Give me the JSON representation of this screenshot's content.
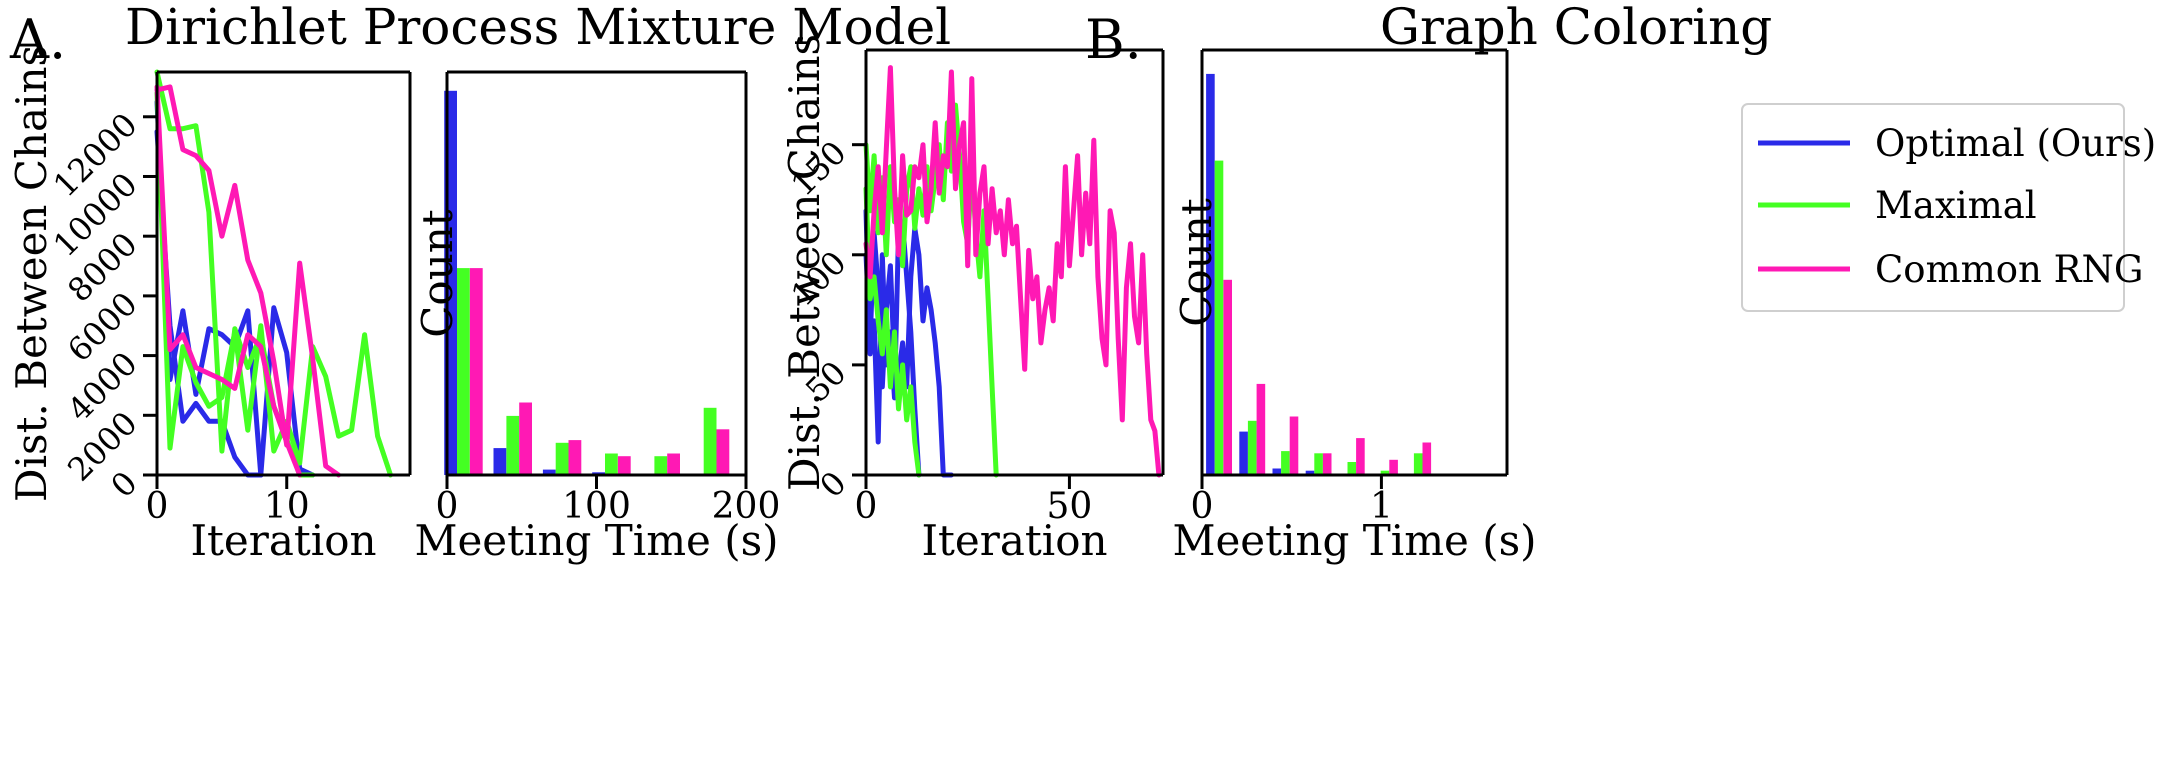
{
  "colors": {
    "optimal": "#2a2ae8",
    "maximal": "#44ff22",
    "common": "#ff19b4",
    "axis": "#000000"
  },
  "panels": {
    "A": {
      "letter": "A.",
      "title": "Dirichlet Process Mixture Model"
    },
    "B": {
      "letter": "B.",
      "title": "Graph Coloring"
    }
  },
  "legend": {
    "position": "top-right of panel B histogram",
    "entries": [
      {
        "label": "Optimal (Ours)",
        "color_key": "optimal"
      },
      {
        "label": "Maximal",
        "color_key": "maximal"
      },
      {
        "label": "Common RNG",
        "color_key": "common"
      }
    ]
  },
  "chart_data": [
    {
      "id": "A-trace",
      "type": "line",
      "xlabel": "Iteration",
      "ylabel": "Dist. Between Chains",
      "xlim": [
        0,
        19.5
      ],
      "ylim": [
        0,
        13500
      ],
      "xticks": [
        0,
        10
      ],
      "xtick_labels": [
        "0",
        "10"
      ],
      "yticks": [
        0,
        2000,
        4000,
        6000,
        8000,
        10000,
        12000
      ],
      "ytick_labels": [
        "0",
        "2000",
        "4000",
        "6000",
        "8000",
        "10000",
        "12000"
      ],
      "series": [
        {
          "name": "Optimal (Ours)",
          "color_key": "optimal",
          "x": [
            0,
            1,
            2,
            3,
            4,
            5,
            6,
            7,
            8
          ],
          "y": [
            12500,
            3200,
            5500,
            2700,
            4900,
            4700,
            4300,
            5500,
            0
          ]
        },
        {
          "name": "Optimal (Ours)",
          "color_key": "optimal",
          "x": [
            0,
            1,
            2,
            3,
            4,
            5,
            6,
            7,
            8,
            9,
            10,
            11,
            12
          ],
          "y": [
            11500,
            5000,
            1800,
            2400,
            1800,
            1800,
            600,
            0,
            0,
            5600,
            4100,
            200,
            0
          ]
        },
        {
          "name": "Maximal",
          "color_key": "maximal",
          "x": [
            0,
            1,
            2,
            3,
            4,
            5,
            6,
            7,
            8,
            9,
            10,
            11,
            12
          ],
          "y": [
            13500,
            11600,
            11600,
            11700,
            8800,
            800,
            4900,
            3600,
            4700,
            2300,
            1200,
            0,
            0
          ]
        },
        {
          "name": "Maximal",
          "color_key": "maximal",
          "x": [
            0,
            1,
            2,
            3,
            4,
            5,
            6,
            7,
            8,
            9,
            10,
            11,
            12,
            13,
            14,
            15,
            16,
            17,
            18
          ],
          "y": [
            12800,
            900,
            4300,
            3100,
            2300,
            2600,
            4800,
            1500,
            5000,
            800,
            1800,
            400,
            4300,
            3300,
            1300,
            1500,
            4700,
            1300,
            0
          ]
        },
        {
          "name": "Common RNG",
          "color_key": "common",
          "x": [
            0,
            1,
            2,
            3,
            4,
            5,
            6,
            7,
            8,
            9,
            10,
            11,
            12,
            13,
            14
          ],
          "y": [
            12900,
            13000,
            10900,
            10700,
            10200,
            8000,
            9700,
            7200,
            6100,
            3800,
            1000,
            7100,
            3900,
            300,
            0
          ]
        },
        {
          "name": "Common RNG",
          "color_key": "common",
          "x": [
            0,
            1,
            2,
            3,
            4,
            5,
            6,
            7,
            8,
            9,
            10,
            11
          ],
          "y": [
            13000,
            4200,
            4700,
            3600,
            3400,
            3200,
            2900,
            4700,
            4300,
            2300,
            1100,
            0
          ]
        }
      ]
    },
    {
      "id": "A-hist",
      "type": "bar",
      "xlabel": "Meeting Time (s)",
      "ylabel": "Count",
      "xlim": [
        0,
        200
      ],
      "ylim": [
        0,
        150
      ],
      "xticks": [
        0,
        100,
        200
      ],
      "xtick_labels": [
        "0",
        "100",
        "200"
      ],
      "bin_centers": [
        11,
        44,
        77,
        110,
        143,
        176
      ],
      "bin_width": 33,
      "series": [
        {
          "name": "Optimal (Ours)",
          "color_key": "optimal",
          "values": [
            143,
            10,
            2,
            1,
            0,
            0
          ]
        },
        {
          "name": "Maximal",
          "color_key": "maximal",
          "values": [
            77,
            22,
            12,
            8,
            7,
            25
          ]
        },
        {
          "name": "Common RNG",
          "color_key": "common",
          "values": [
            77,
            27,
            13,
            7,
            8,
            17
          ]
        }
      ]
    },
    {
      "id": "B-trace",
      "type": "line",
      "xlabel": "Iteration",
      "ylabel": "Dist. Between Chains",
      "xlim": [
        0,
        73
      ],
      "ylim": [
        0,
        193
      ],
      "xticks": [
        0,
        50
      ],
      "xtick_labels": [
        "0",
        "50"
      ],
      "yticks": [
        0,
        50,
        100,
        150
      ],
      "ytick_labels": [
        "0",
        "50",
        "100",
        "150"
      ],
      "series": [
        {
          "name": "Optimal (Ours)",
          "color_key": "optimal",
          "x": [
            0,
            1,
            2,
            3,
            4,
            5,
            6,
            7,
            8,
            9,
            10,
            11,
            12,
            13,
            14,
            15,
            16,
            17,
            18,
            19,
            20,
            21
          ],
          "y": [
            100,
            60,
            110,
            85,
            40,
            75,
            95,
            50,
            45,
            60,
            40,
            90,
            112,
            100,
            70,
            85,
            75,
            60,
            40,
            0,
            0,
            0
          ]
        },
        {
          "name": "Optimal (Ours)",
          "color_key": "optimal",
          "x": [
            0,
            1,
            2,
            3,
            4,
            5,
            6,
            7,
            8,
            9,
            10,
            11,
            12,
            13
          ],
          "y": [
            120,
            55,
            70,
            15,
            100,
            50,
            65,
            35,
            110,
            115,
            90,
            65,
            30,
            0
          ]
        },
        {
          "name": "Maximal",
          "color_key": "maximal",
          "x": [
            0,
            1,
            2,
            3,
            4,
            5,
            6,
            7,
            8,
            9,
            10,
            11,
            12,
            13,
            14,
            15,
            16,
            17,
            18,
            19,
            20,
            21,
            22,
            23,
            24,
            25,
            26,
            27,
            28,
            29,
            30,
            31,
            32
          ],
          "y": [
            150,
            120,
            145,
            110,
            135,
            100,
            140,
            115,
            125,
            95,
            130,
            140,
            112,
            130,
            118,
            140,
            120,
            135,
            150,
            125,
            160,
            138,
            168,
            145,
            115,
            105,
            140,
            110,
            90,
            120,
            80,
            40,
            0
          ]
        },
        {
          "name": "Maximal",
          "color_key": "maximal",
          "x": [
            0,
            1,
            2,
            3,
            4,
            5,
            6,
            7,
            8,
            9,
            10,
            11,
            12,
            13
          ],
          "y": [
            130,
            80,
            90,
            70,
            55,
            75,
            40,
            65,
            30,
            50,
            25,
            40,
            15,
            0
          ]
        },
        {
          "name": "Common RNG",
          "color_key": "common",
          "x": [
            0,
            1,
            2,
            3,
            4,
            5,
            6,
            7,
            8,
            9,
            10,
            11,
            12,
            13,
            14,
            15,
            16,
            17,
            18,
            19,
            20,
            21,
            22,
            23,
            24,
            25,
            26,
            27,
            28,
            29,
            30,
            31,
            32,
            33,
            34,
            35,
            36,
            37,
            38,
            39,
            40,
            41,
            42,
            43,
            44,
            45,
            46,
            47,
            48,
            49,
            50,
            51,
            52,
            53,
            54,
            55,
            56,
            57,
            58,
            59,
            60,
            61,
            62,
            63,
            64,
            65,
            66,
            67,
            68,
            69,
            70,
            71,
            72
          ],
          "y": [
            105,
            90,
            120,
            140,
            110,
            148,
            185,
            130,
            100,
            145,
            118,
            120,
            140,
            135,
            150,
            115,
            130,
            160,
            128,
            145,
            140,
            183,
            130,
            150,
            160,
            95,
            180,
            100,
            128,
            140,
            105,
            130,
            110,
            120,
            100,
            125,
            105,
            113,
            80,
            48,
            102,
            80,
            90,
            60,
            75,
            85,
            70,
            105,
            90,
            140,
            95,
            120,
            145,
            100,
            128,
            105,
            152,
            90,
            62,
            50,
            120,
            110,
            62,
            25,
            85,
            105,
            72,
            60,
            100,
            55,
            25,
            20,
            0
          ]
        }
      ]
    },
    {
      "id": "B-hist",
      "type": "bar",
      "xlabel": "Meeting Time (s)",
      "ylabel": "Count",
      "xlim": [
        0,
        1.7
      ],
      "ylim": [
        0,
        196
      ],
      "xticks": [
        0,
        1
      ],
      "xtick_labels": [
        "0",
        "1"
      ],
      "bin_centers": [
        0.095,
        0.28,
        0.465,
        0.65,
        0.835,
        1.02,
        1.205,
        1.39,
        1.575
      ],
      "bin_width": 0.185,
      "series": [
        {
          "name": "Optimal (Ours)",
          "color_key": "optimal",
          "values": [
            185,
            20,
            3,
            2,
            0,
            0,
            0,
            0,
            0
          ]
        },
        {
          "name": "Maximal",
          "color_key": "maximal",
          "values": [
            145,
            25,
            11,
            10,
            6,
            2,
            10,
            0,
            0
          ]
        },
        {
          "name": "Common RNG",
          "color_key": "common",
          "values": [
            90,
            42,
            27,
            10,
            17,
            7,
            15,
            0,
            0
          ]
        }
      ]
    }
  ]
}
